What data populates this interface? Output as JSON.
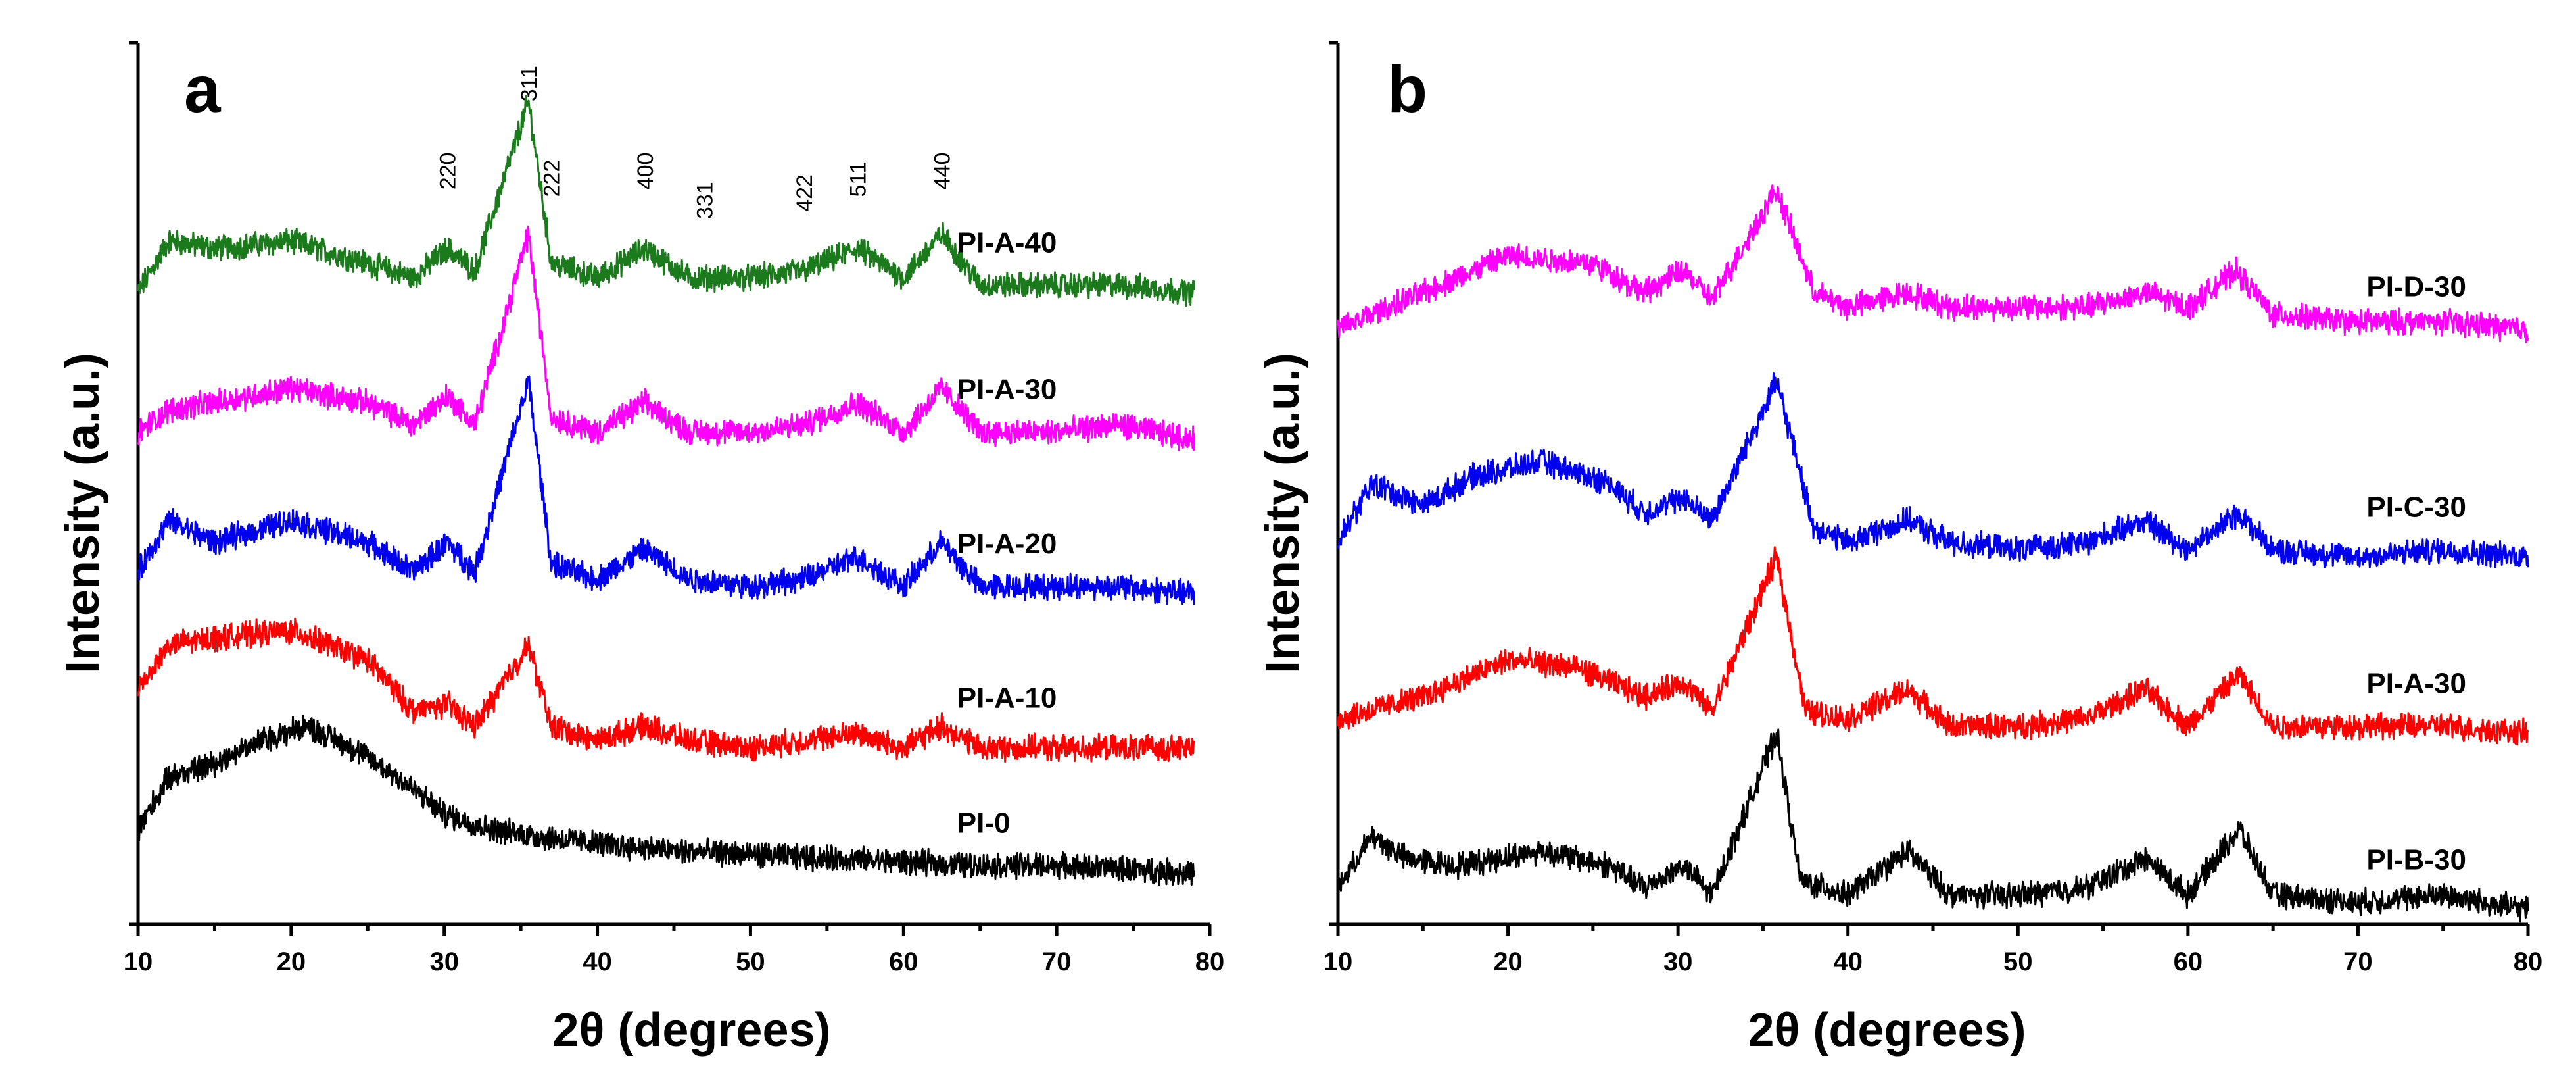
{
  "chart_data": [
    {
      "panel": "a",
      "type": "line",
      "xlabel": "2θ (degrees)",
      "ylabel": "Intensity (a.u.)",
      "xlim": [
        10,
        80
      ],
      "xticks": [
        10,
        20,
        30,
        40,
        50,
        60,
        70,
        80
      ],
      "ylim": [
        0,
        1.2
      ],
      "grid": false,
      "peak_labels": [
        {
          "text": "220",
          "x": 30.2,
          "y": 1.0
        },
        {
          "text": "311",
          "x": 35.5,
          "y": 1.12
        },
        {
          "text": "222",
          "x": 37.0,
          "y": 0.99
        },
        {
          "text": "400",
          "x": 43.1,
          "y": 1.0
        },
        {
          "text": "331",
          "x": 47.0,
          "y": 0.96
        },
        {
          "text": "422",
          "x": 53.5,
          "y": 0.97
        },
        {
          "text": "511",
          "x": 57.0,
          "y": 0.99
        },
        {
          "text": "440",
          "x": 62.5,
          "y": 1.0
        }
      ],
      "series": [
        {
          "name": "PI-A-40",
          "color": "#1b7a1b",
          "baseline": 0.86,
          "x": [
            10,
            12,
            15,
            20,
            25,
            28,
            30.2,
            32,
            35.5,
            37,
            40,
            43.1,
            46,
            50,
            53.5,
            57,
            60,
            62.5,
            65,
            70,
            74,
            79
          ],
          "y": [
            0.86,
            0.93,
            0.92,
            0.93,
            0.9,
            0.88,
            0.92,
            0.89,
            1.12,
            0.9,
            0.88,
            0.92,
            0.88,
            0.88,
            0.89,
            0.92,
            0.88,
            0.94,
            0.87,
            0.87,
            0.87,
            0.86
          ]
        },
        {
          "name": "PI-A-30",
          "color": "#ff00ff",
          "baseline": 0.66,
          "x": [
            10,
            12,
            15,
            20,
            25,
            28,
            30.2,
            32,
            35.5,
            37,
            40,
            43.1,
            46,
            50,
            53.5,
            57,
            60,
            62.5,
            65,
            70,
            74,
            79
          ],
          "y": [
            0.67,
            0.7,
            0.71,
            0.73,
            0.71,
            0.68,
            0.72,
            0.68,
            0.94,
            0.69,
            0.67,
            0.71,
            0.67,
            0.67,
            0.68,
            0.71,
            0.67,
            0.73,
            0.67,
            0.67,
            0.68,
            0.66
          ]
        },
        {
          "name": "PI-A-20",
          "color": "#0000ee",
          "baseline": 0.45,
          "x": [
            10,
            12,
            15,
            20,
            25,
            28,
            30.2,
            32,
            35.5,
            37,
            40,
            43.1,
            46,
            50,
            53.5,
            57,
            60,
            62.5,
            65,
            70,
            74,
            79
          ],
          "y": [
            0.48,
            0.55,
            0.52,
            0.55,
            0.52,
            0.48,
            0.52,
            0.48,
            0.74,
            0.49,
            0.47,
            0.51,
            0.47,
            0.46,
            0.47,
            0.5,
            0.46,
            0.52,
            0.46,
            0.46,
            0.46,
            0.45
          ]
        },
        {
          "name": "PI-A-10",
          "color": "#ff0000",
          "baseline": 0.24,
          "x": [
            10,
            12,
            15,
            20,
            25,
            28,
            30.2,
            32,
            35.5,
            37,
            40,
            43.1,
            46,
            50,
            53.5,
            57,
            60,
            62.5,
            65,
            70,
            74,
            79
          ],
          "y": [
            0.32,
            0.38,
            0.39,
            0.4,
            0.36,
            0.29,
            0.3,
            0.27,
            0.38,
            0.27,
            0.25,
            0.27,
            0.25,
            0.24,
            0.25,
            0.26,
            0.24,
            0.27,
            0.24,
            0.24,
            0.24,
            0.24
          ]
        },
        {
          "name": "PI-0",
          "color": "#000000",
          "baseline": 0.07,
          "x": [
            10,
            12,
            15,
            18,
            21,
            24,
            27,
            30,
            33,
            36,
            40,
            45,
            50,
            55,
            60,
            65,
            70,
            75,
            79
          ],
          "y": [
            0.13,
            0.2,
            0.22,
            0.25,
            0.27,
            0.24,
            0.2,
            0.15,
            0.13,
            0.12,
            0.11,
            0.1,
            0.095,
            0.09,
            0.085,
            0.08,
            0.08,
            0.075,
            0.07
          ]
        }
      ]
    },
    {
      "panel": "b",
      "type": "line",
      "xlabel": "2θ (degrees)",
      "ylabel": "Intensity (a.u.)",
      "xlim": [
        10,
        80
      ],
      "xticks": [
        10,
        20,
        30,
        40,
        50,
        60,
        70,
        80
      ],
      "ylim": [
        0,
        1.2
      ],
      "grid": false,
      "series": [
        {
          "name": "PI-D-30",
          "color": "#ff00ff",
          "baseline": 0.8,
          "x": [
            10,
            15,
            20,
            25,
            28,
            30.3,
            32,
            35.8,
            38,
            40,
            43.5,
            46,
            50,
            54,
            57.5,
            60,
            62.8,
            65,
            70,
            75,
            80
          ],
          "y": [
            0.81,
            0.86,
            0.91,
            0.9,
            0.86,
            0.89,
            0.85,
            1.0,
            0.86,
            0.84,
            0.86,
            0.84,
            0.84,
            0.84,
            0.86,
            0.84,
            0.89,
            0.83,
            0.82,
            0.82,
            0.81
          ]
        },
        {
          "name": "PI-C-30",
          "color": "#0000ee",
          "baseline": 0.5,
          "x": [
            10,
            12,
            15,
            18,
            22,
            26,
            28,
            30.3,
            32,
            35.8,
            38,
            40,
            43.5,
            46,
            50,
            54,
            57.5,
            60,
            63,
            65,
            70,
            75,
            80
          ],
          "y": [
            0.52,
            0.6,
            0.57,
            0.61,
            0.63,
            0.6,
            0.56,
            0.58,
            0.55,
            0.74,
            0.54,
            0.52,
            0.55,
            0.52,
            0.51,
            0.52,
            0.55,
            0.51,
            0.56,
            0.51,
            0.5,
            0.51,
            0.5
          ]
        },
        {
          "name": "PI-A-30",
          "color": "#ff0000",
          "baseline": 0.26,
          "x": [
            10,
            15,
            20,
            24,
            28,
            30.3,
            32,
            35.8,
            37.5,
            40,
            43.5,
            46,
            50,
            54,
            57.5,
            60,
            63,
            65,
            70,
            75,
            80
          ],
          "y": [
            0.28,
            0.31,
            0.36,
            0.35,
            0.31,
            0.33,
            0.29,
            0.5,
            0.29,
            0.28,
            0.32,
            0.27,
            0.27,
            0.28,
            0.32,
            0.27,
            0.34,
            0.27,
            0.27,
            0.27,
            0.26
          ]
        },
        {
          "name": "PI-B-30",
          "color": "#000000",
          "baseline": 0.02,
          "x": [
            10,
            12,
            14,
            17,
            22,
            26,
            28,
            30.3,
            32,
            35.8,
            37.2,
            40,
            43.5,
            46,
            50,
            54,
            57.5,
            60,
            63,
            65,
            70,
            75,
            80
          ],
          "y": [
            0.05,
            0.12,
            0.09,
            0.08,
            0.1,
            0.08,
            0.05,
            0.08,
            0.04,
            0.26,
            0.06,
            0.04,
            0.1,
            0.04,
            0.04,
            0.05,
            0.09,
            0.04,
            0.13,
            0.04,
            0.03,
            0.04,
            0.02
          ]
        }
      ]
    }
  ]
}
